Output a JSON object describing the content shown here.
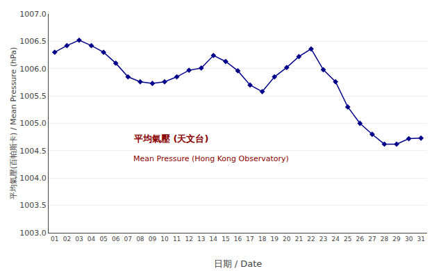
{
  "chart_data": {
    "type": "line",
    "x": [
      1,
      2,
      3,
      4,
      5,
      6,
      7,
      8,
      9,
      10,
      11,
      12,
      13,
      14,
      15,
      16,
      17,
      18,
      19,
      20,
      21,
      22,
      23,
      24,
      25,
      26,
      27,
      28,
      29,
      30,
      31
    ],
    "values": [
      1006.3,
      1006.42,
      1006.52,
      1006.42,
      1006.3,
      1006.1,
      1005.85,
      1005.76,
      1005.73,
      1005.76,
      1005.85,
      1005.97,
      1006.01,
      1006.24,
      1006.13,
      1005.96,
      1005.7,
      1005.58,
      1005.85,
      1006.02,
      1006.22,
      1006.36,
      1005.98,
      1005.76,
      1005.3,
      1005.0,
      1004.8,
      1004.62,
      1004.62,
      1004.72,
      1004.73
    ],
    "color": "#00008B",
    "marker": "diamond",
    "x_label": "日期 / Date",
    "y_label": "平均氣壓(百帕斯卡) / Mean Pressure (hPa)",
    "xlim": [
      0.5,
      31.5
    ],
    "xticks": [
      {
        "value": 1,
        "label": "01"
      },
      {
        "value": 2,
        "label": "02"
      },
      {
        "value": 3,
        "label": "03"
      },
      {
        "value": 4,
        "label": "04"
      },
      {
        "value": 5,
        "label": "05"
      },
      {
        "value": 6,
        "label": "06"
      },
      {
        "value": 7,
        "label": "07"
      },
      {
        "value": 8,
        "label": "08"
      },
      {
        "value": 9,
        "label": "09"
      },
      10,
      11,
      12,
      13,
      14,
      15,
      16,
      17,
      18,
      19,
      20,
      21,
      22,
      23,
      24,
      25,
      26,
      27,
      28,
      29,
      30,
      31
    ],
    "ylim": [
      1003.0,
      1007.0
    ],
    "yticks": [
      {
        "value": 1003.0,
        "label": "1003.0"
      },
      1003.5,
      {
        "value": 1004.0,
        "label": "1004.0"
      },
      1004.5,
      {
        "value": 1005.0,
        "label": "1005.0"
      },
      1005.5,
      {
        "value": 1006.0,
        "label": "1006.0"
      },
      1006.5,
      {
        "value": 1007.0,
        "label": "1007.0"
      }
    ],
    "grid": true,
    "annotations": [
      {
        "text": "平均氣壓 (天文台)",
        "color": "#8B0000"
      },
      {
        "text": "Mean Pressure (Hong Kong Observatory)",
        "color": "#8B0000"
      }
    ]
  }
}
